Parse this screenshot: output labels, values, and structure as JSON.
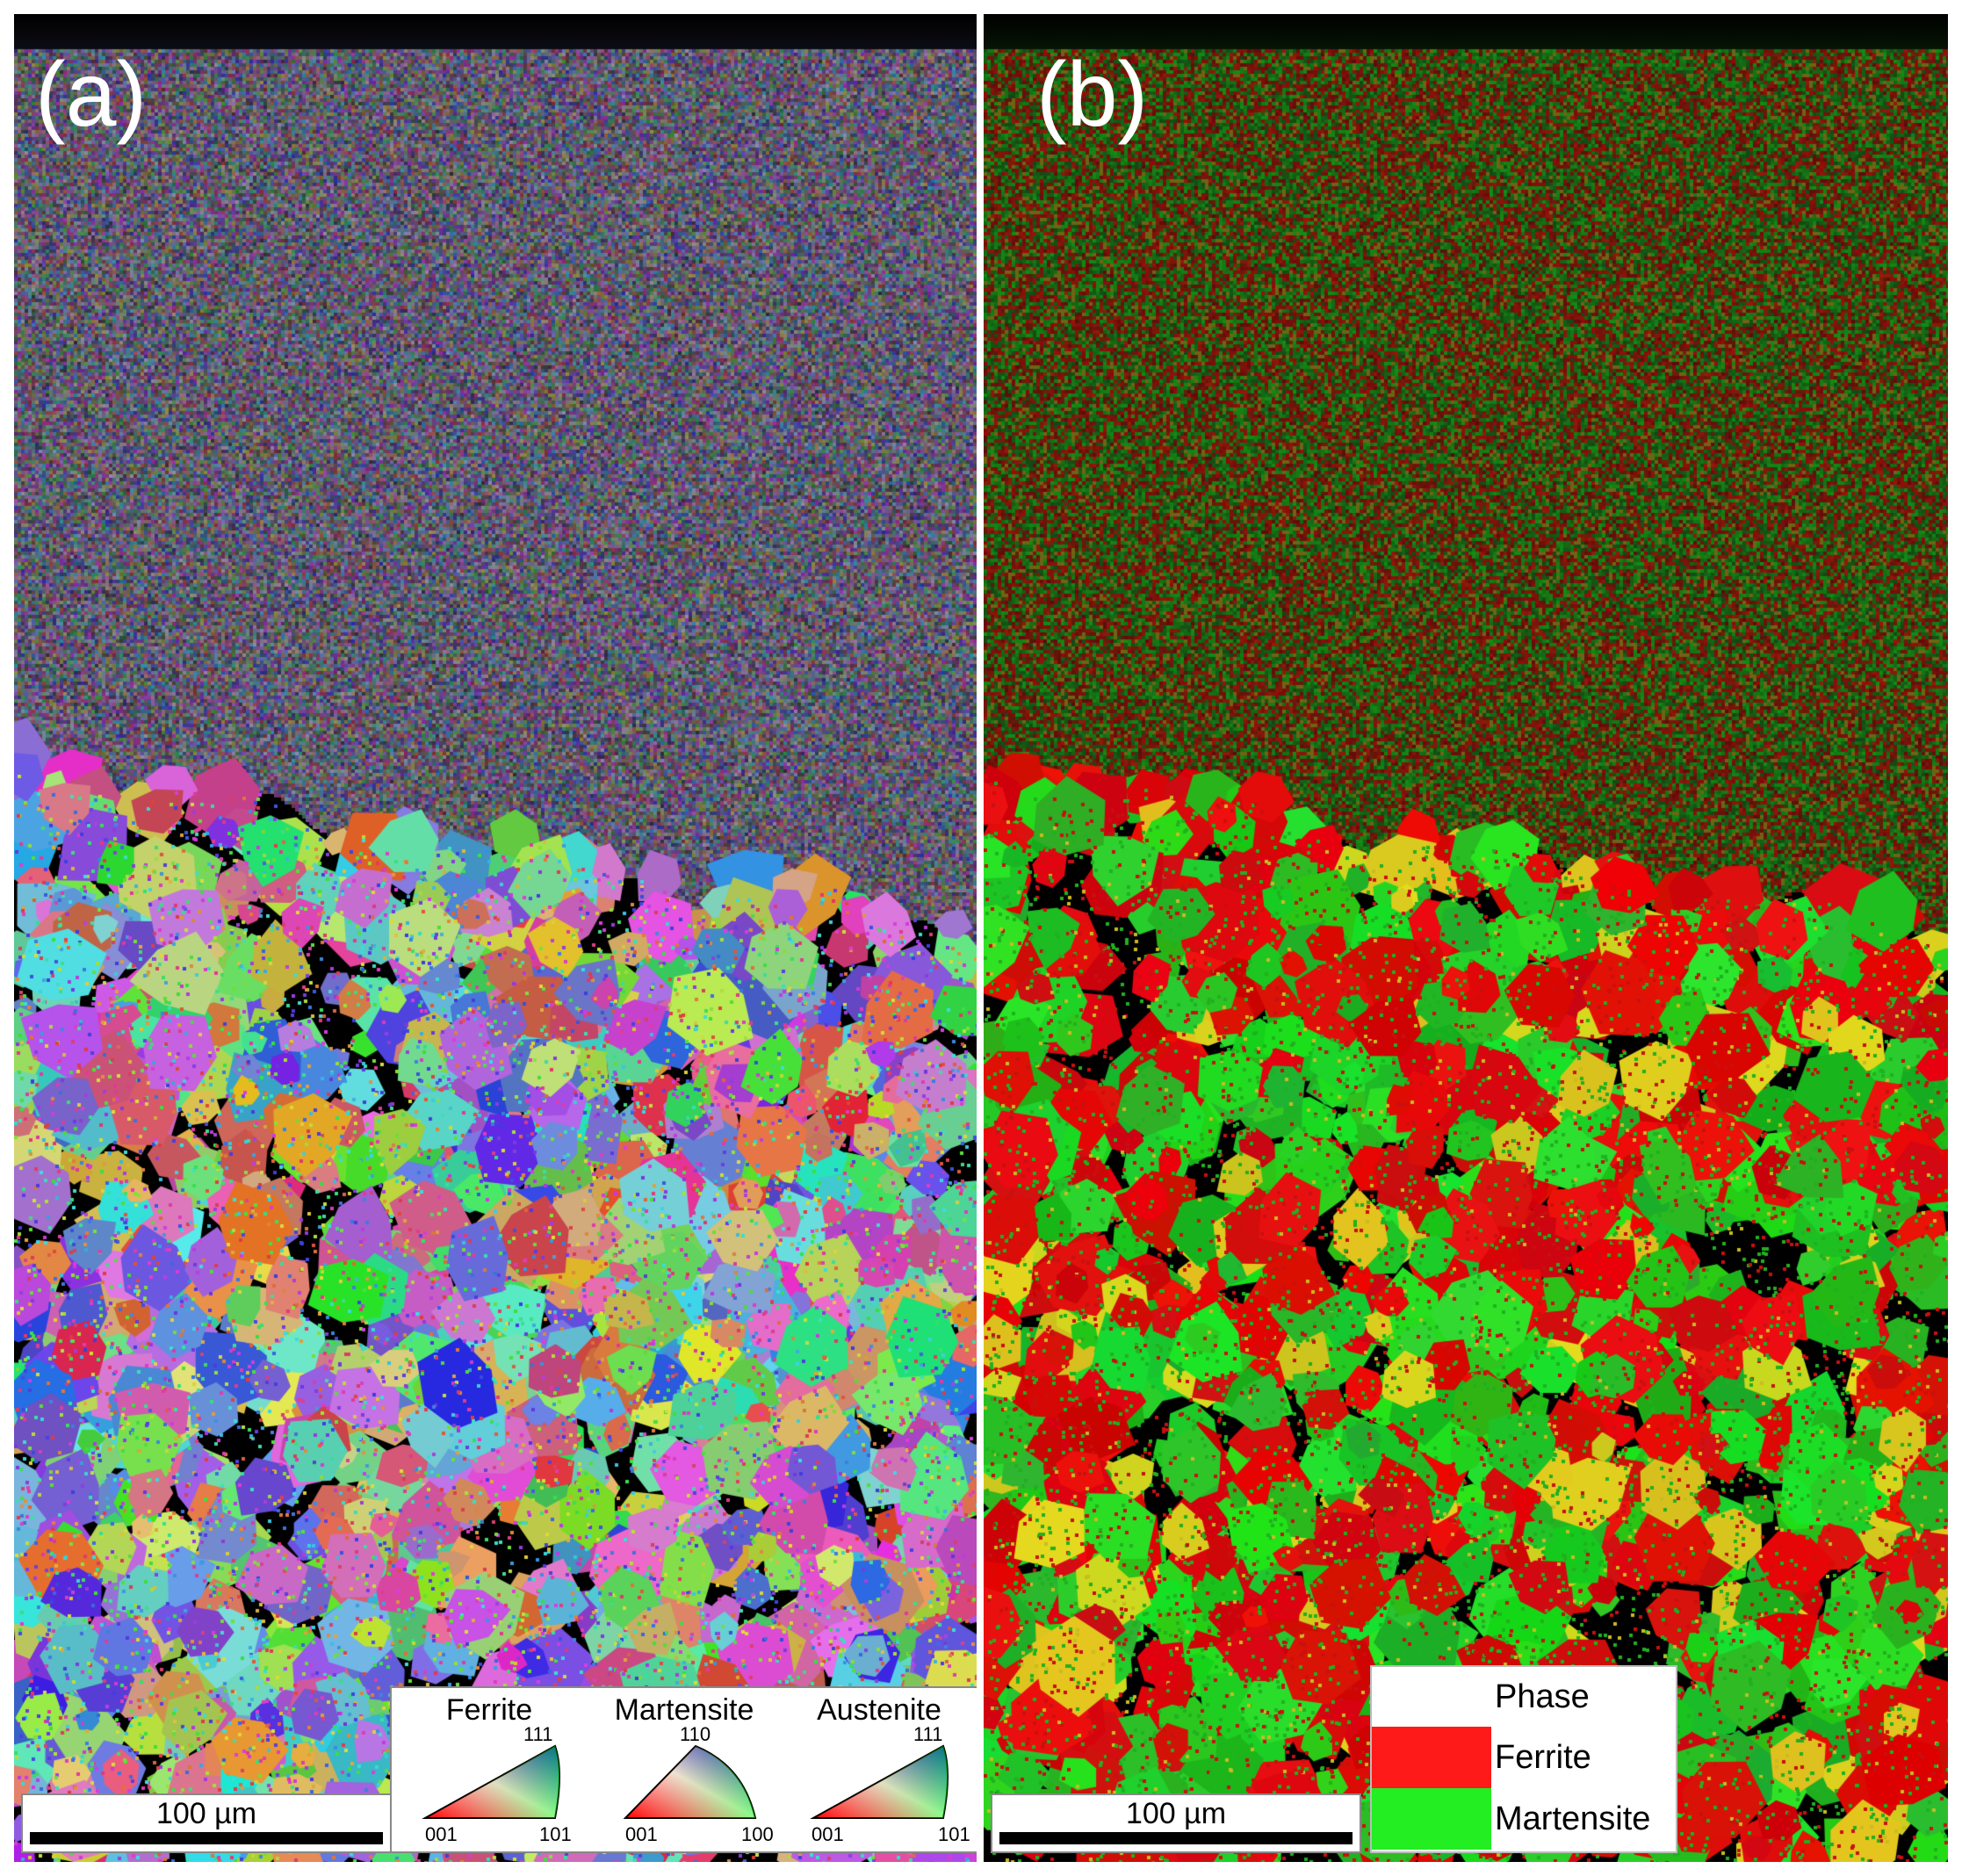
{
  "panels": [
    {
      "label": "(a)",
      "map_type": "orientation",
      "scale_bar": "100 µm"
    },
    {
      "label": "(b)",
      "map_type": "phase",
      "scale_bar": "100 µm"
    }
  ],
  "ipf_legend": [
    {
      "phase": "Ferrite",
      "top": "111",
      "bottom_left": "001",
      "bottom_right": "101"
    },
    {
      "phase": "Martensite",
      "top": "110",
      "bottom_left": "001",
      "bottom_right": "100"
    },
    {
      "phase": "Austenite",
      "top": "111",
      "bottom_left": "001",
      "bottom_right": "101"
    }
  ],
  "phase_legend": {
    "header": "Phase",
    "entries": [
      {
        "name": "Ferrite",
        "color": "#ff1a1a"
      },
      {
        "name": "Martensite",
        "color": "#22ee22"
      }
    ]
  },
  "colors": {
    "ferrite": "#e01010",
    "martensite": "#22cc22",
    "austenite": "#d8cc20"
  }
}
